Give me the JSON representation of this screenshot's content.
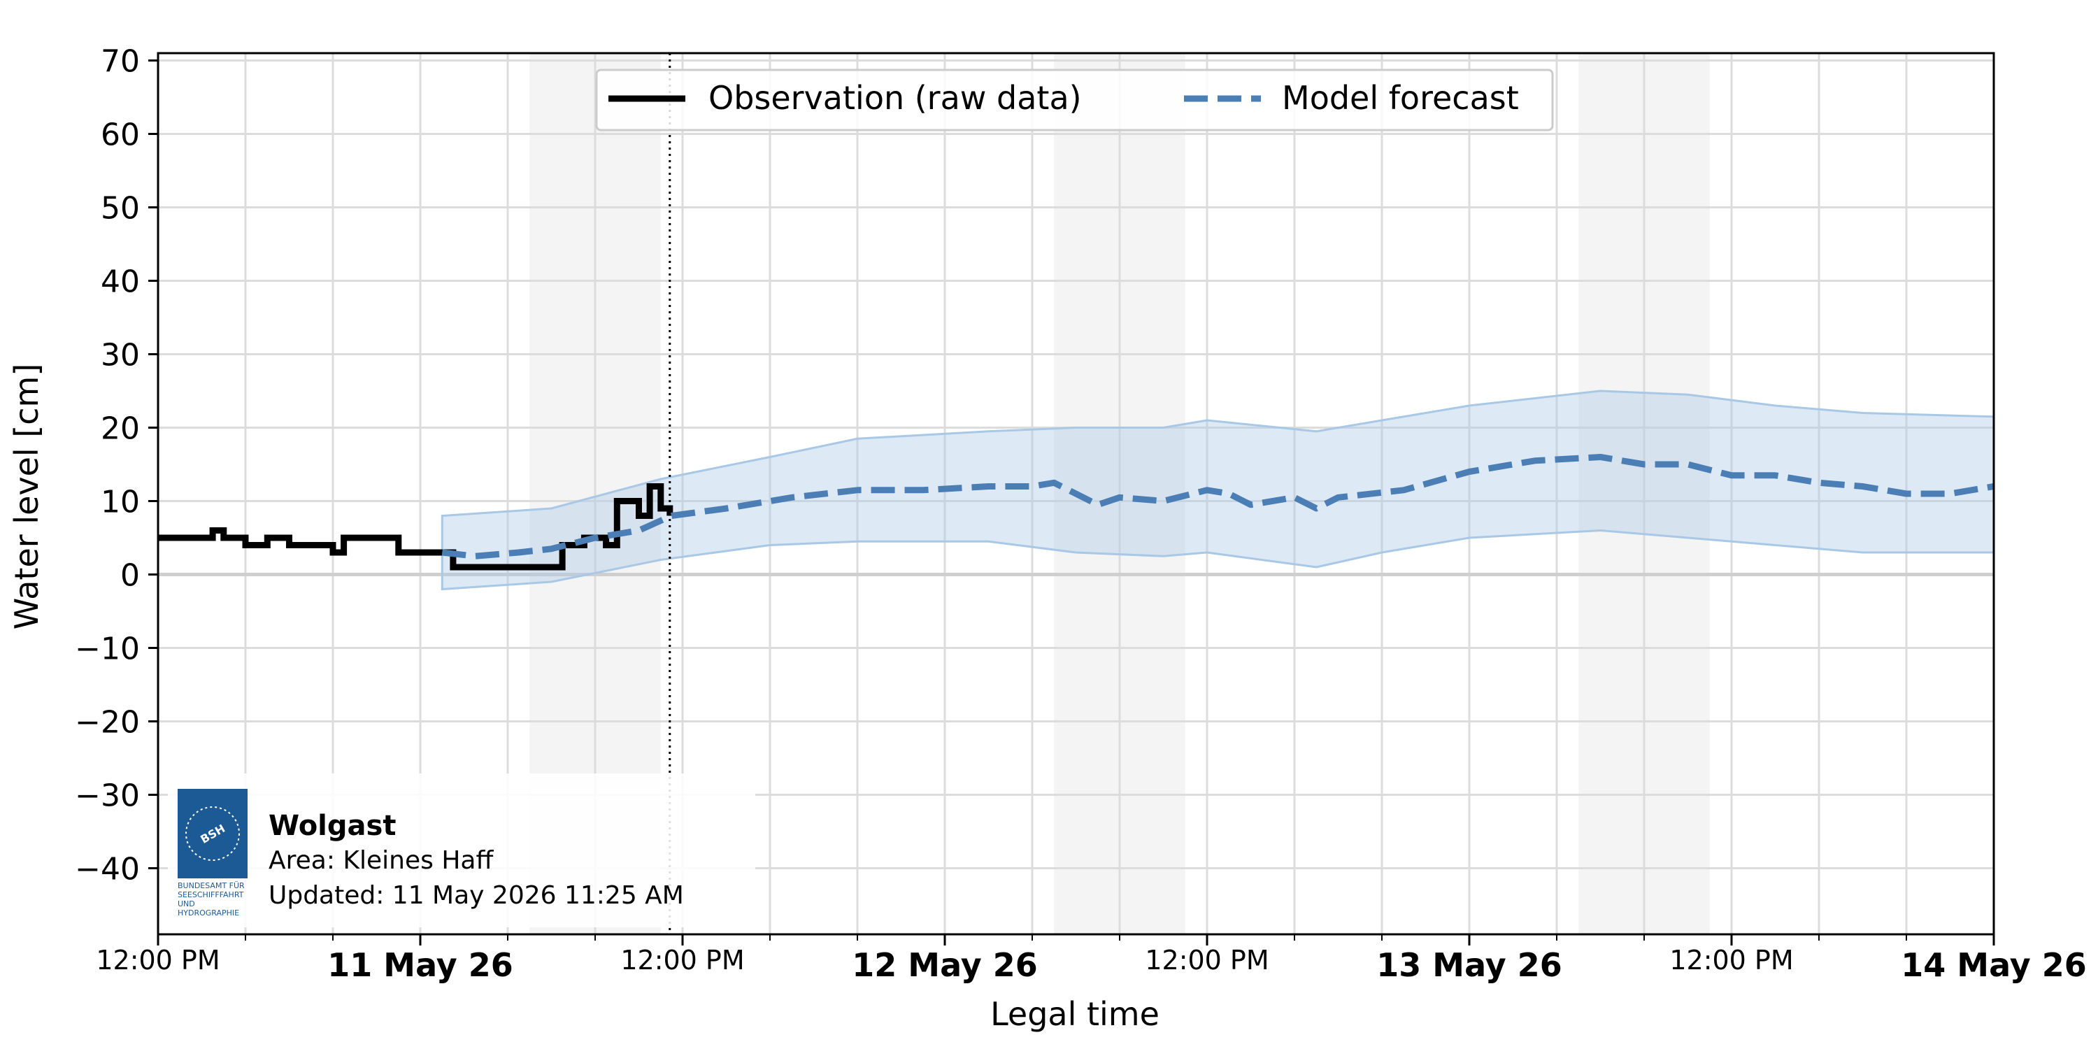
{
  "chart_data": {
    "type": "line",
    "xlabel": "Legal time",
    "ylabel": "Water level [cm]",
    "ylim": [
      -49,
      71
    ],
    "xlim": [
      "10 May 2026 12:00 PM",
      "14 May 2026 00:00"
    ],
    "yticks": [
      70,
      60,
      50,
      40,
      30,
      20,
      10,
      0,
      -10,
      -20,
      -30,
      -40
    ],
    "ytick_labels": [
      "70",
      "60",
      "50",
      "40",
      "30",
      "20",
      "10",
      "0",
      "−10",
      "−20",
      "−30",
      "−40"
    ],
    "xticks_major": [
      {
        "time": "10 May 2026 12:00 PM",
        "label": "12:00 PM",
        "bold": false
      },
      {
        "time": "11 May 2026 00:00",
        "label": "11 May 26",
        "bold": true
      },
      {
        "time": "11 May 2026 12:00 PM",
        "label": "12:00 PM",
        "bold": false
      },
      {
        "time": "12 May 2026 00:00",
        "label": "12 May 26",
        "bold": true
      },
      {
        "time": "12 May 2026 12:00 PM",
        "label": "12:00 PM",
        "bold": false
      },
      {
        "time": "13 May 2026 00:00",
        "label": "13 May 26",
        "bold": true
      },
      {
        "time": "13 May 2026 12:00 PM",
        "label": "12:00 PM",
        "bold": false
      },
      {
        "time": "14 May 2026 00:00",
        "label": "14 May 26",
        "bold": true
      }
    ],
    "grid": true,
    "legend": "top-center",
    "night_shading": [
      [
        "11 May 2026 05:00",
        "11 May 2026 11:00"
      ],
      [
        "12 May 2026 05:00",
        "12 May 2026 11:00"
      ],
      [
        "13 May 2026 05:00",
        "13 May 2026 11:00"
      ],
      [
        "14 May 2026 05:00",
        "14 May 2026 00:00"
      ]
    ],
    "now_marker": "11 May 2026 11:25 AM",
    "series": [
      {
        "name": "Observation (raw data)",
        "style": "solid-step",
        "color": "#000000",
        "points": [
          [
            "10 May 2026 12:00 PM",
            5
          ],
          [
            "10 May 2026 02:00 PM",
            5
          ],
          [
            "10 May 2026 02:30 PM",
            6
          ],
          [
            "10 May 2026 03:00 PM",
            5
          ],
          [
            "10 May 2026 04:00 PM",
            4
          ],
          [
            "10 May 2026 05:00 PM",
            5
          ],
          [
            "10 May 2026 06:00 PM",
            4
          ],
          [
            "10 May 2026 08:00 PM",
            3
          ],
          [
            "10 May 2026 08:30 PM",
            5
          ],
          [
            "10 May 2026 10:00 PM",
            5
          ],
          [
            "10 May 2026 11:00 PM",
            3
          ],
          [
            "11 May 2026 00:00",
            3
          ],
          [
            "11 May 2026 01:30",
            1
          ],
          [
            "11 May 2026 02:30",
            1
          ],
          [
            "11 May 2026 04:30",
            1
          ],
          [
            "11 May 2026 06:00",
            1
          ],
          [
            "11 May 2026 06:30",
            4
          ],
          [
            "11 May 2026 07:30",
            5
          ],
          [
            "11 May 2026 08:00",
            5
          ],
          [
            "11 May 2026 08:30",
            4
          ],
          [
            "11 May 2026 09:00",
            10
          ],
          [
            "11 May 2026 09:30",
            10
          ],
          [
            "11 May 2026 10:00",
            8
          ],
          [
            "11 May 2026 10:30",
            12
          ],
          [
            "11 May 2026 11:00",
            9
          ],
          [
            "11 May 2026 11:25",
            8
          ]
        ]
      },
      {
        "name": "Model forecast",
        "style": "dashed",
        "color": "#4a7eb5",
        "points": [
          [
            "11 May 2026 01:00",
            3
          ],
          [
            "11 May 2026 02:30",
            2.5
          ],
          [
            "11 May 2026 04:30",
            3
          ],
          [
            "11 May 2026 06:00",
            3.5
          ],
          [
            "11 May 2026 08:00",
            5
          ],
          [
            "11 May 2026 10:00",
            6
          ],
          [
            "11 May 2026 11:30",
            8
          ],
          [
            "11 May 2026 02:00 PM",
            9
          ],
          [
            "11 May 2026 05:00 PM",
            10.5
          ],
          [
            "11 May 2026 08:00 PM",
            11.5
          ],
          [
            "11 May 2026 11:00 PM",
            11.5
          ],
          [
            "12 May 2026 02:00",
            12
          ],
          [
            "12 May 2026 04:00",
            12
          ],
          [
            "12 May 2026 05:00",
            12.5
          ],
          [
            "12 May 2026 06:00",
            11
          ],
          [
            "12 May 2026 07:00",
            9.5
          ],
          [
            "12 May 2026 08:00",
            10.5
          ],
          [
            "12 May 2026 10:00",
            10
          ],
          [
            "12 May 2026 12:00 PM",
            11.5
          ],
          [
            "12 May 2026 01:00 PM",
            11
          ],
          [
            "12 May 2026 02:00 PM",
            9.5
          ],
          [
            "12 May 2026 04:00 PM",
            10.5
          ],
          [
            "12 May 2026 05:00 PM",
            9
          ],
          [
            "12 May 2026 06:00 PM",
            10.5
          ],
          [
            "12 May 2026 09:00 PM",
            11.5
          ],
          [
            "13 May 2026 00:00",
            14
          ],
          [
            "13 May 2026 03:00",
            15.5
          ],
          [
            "13 May 2026 06:00",
            16
          ],
          [
            "13 May 2026 08:00",
            15
          ],
          [
            "13 May 2026 10:00",
            15
          ],
          [
            "13 May 2026 12:00 PM",
            13.5
          ],
          [
            "13 May 2026 02:00 PM",
            13.5
          ],
          [
            "13 May 2026 04:00 PM",
            12.5
          ],
          [
            "13 May 2026 06:00 PM",
            12
          ],
          [
            "13 May 2026 08:00 PM",
            11
          ],
          [
            "13 May 2026 10:00 PM",
            11
          ],
          [
            "14 May 2026 00:00",
            12
          ]
        ]
      },
      {
        "name": "Forecast uncertainty band",
        "style": "band",
        "color": "#a9c8e6",
        "upper": [
          [
            "11 May 2026 01:00",
            8
          ],
          [
            "11 May 2026 06:00",
            9
          ],
          [
            "11 May 2026 11:00",
            13
          ],
          [
            "11 May 2026 04:00 PM",
            16
          ],
          [
            "11 May 2026 08:00 PM",
            18.5
          ],
          [
            "12 May 2026 02:00",
            19.5
          ],
          [
            "12 May 2026 06:00",
            20
          ],
          [
            "12 May 2026 10:00",
            20
          ],
          [
            "12 May 2026 12:00 PM",
            21
          ],
          [
            "12 May 2026 05:00 PM",
            19.5
          ],
          [
            "12 May 2026 08:00 PM",
            21
          ],
          [
            "13 May 2026 00:00",
            23
          ],
          [
            "13 May 2026 06:00",
            25
          ],
          [
            "13 May 2026 10:00",
            24.5
          ],
          [
            "13 May 2026 02:00 PM",
            23
          ],
          [
            "13 May 2026 06:00 PM",
            22
          ],
          [
            "14 May 2026 00:00",
            21.5
          ]
        ],
        "lower": [
          [
            "11 May 2026 01:00",
            -2
          ],
          [
            "11 May 2026 06:00",
            -1
          ],
          [
            "11 May 2026 11:00",
            2
          ],
          [
            "11 May 2026 04:00 PM",
            4
          ],
          [
            "11 May 2026 08:00 PM",
            4.5
          ],
          [
            "12 May 2026 02:00",
            4.5
          ],
          [
            "12 May 2026 06:00",
            3
          ],
          [
            "12 May 2026 10:00",
            2.5
          ],
          [
            "12 May 2026 12:00 PM",
            3
          ],
          [
            "12 May 2026 05:00 PM",
            1
          ],
          [
            "12 May 2026 08:00 PM",
            3
          ],
          [
            "13 May 2026 00:00",
            5
          ],
          [
            "13 May 2026 06:00",
            6
          ],
          [
            "13 May 2026 10:00",
            5
          ],
          [
            "13 May 2026 02:00 PM",
            4
          ],
          [
            "13 May 2026 06:00 PM",
            3
          ],
          [
            "14 May 2026 00:00",
            3
          ]
        ]
      }
    ]
  },
  "legend": {
    "observation_label": "Observation (raw data)",
    "forecast_label": "Model forecast"
  },
  "info": {
    "station": "Wolgast",
    "area": "Area: Kleines Haff",
    "updated": "Updated: 11 May 2026 11:25 AM",
    "logo_text": "BUNDESAMT FÜR SEESCHIFFFAHRT UND HYDROGRAPHIE",
    "logo_mark": "BSH"
  },
  "colors": {
    "observation": "#000000",
    "forecast": "#4a7eb5",
    "band": "#a9c8e6",
    "night_shade": "#f4f4f4",
    "grid": "#dcdcdc",
    "logo_blue": "#1c5a96"
  }
}
